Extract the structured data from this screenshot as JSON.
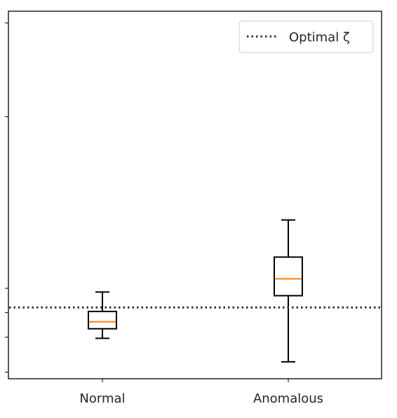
{
  "chart_data": {
    "type": "boxplot",
    "categories": [
      "Normal",
      "Anomalous"
    ],
    "ylim": [
      0.0,
      1.0
    ],
    "y_ticks": [
      0.018,
      0.113,
      0.18,
      0.246,
      0.713,
      0.968
    ],
    "boxes": [
      {
        "category": "Normal",
        "whisker_low": 0.11,
        "q1": 0.136,
        "median": 0.155,
        "q3": 0.183,
        "whisker_high": 0.236
      },
      {
        "category": "Anomalous",
        "whisker_low": 0.046,
        "q1": 0.226,
        "median": 0.272,
        "q3": 0.331,
        "whisker_high": 0.432
      }
    ],
    "optimal_zeta": 0.194,
    "legend": {
      "label": "Optimal ζ",
      "position": "top-right",
      "style": "dotted"
    },
    "colors": {
      "box": "#000000",
      "median": "#ff7f0e",
      "reference_line": "#333333"
    }
  }
}
